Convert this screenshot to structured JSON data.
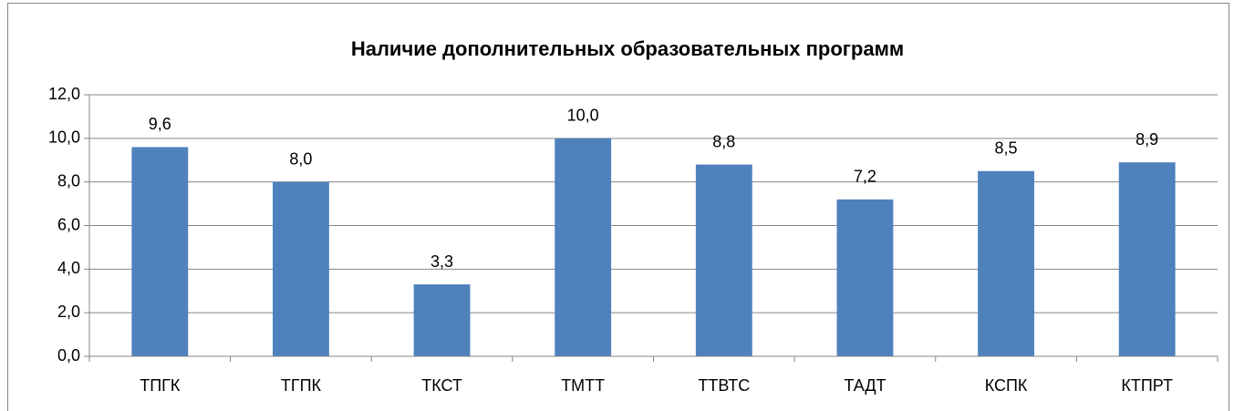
{
  "chart_data": {
    "type": "bar",
    "title": "Наличие дополнительных образовательных программ",
    "categories": [
      "ТПГК",
      "ТГПК",
      "ТКСТ",
      "ТМТТ",
      "ТТВТС",
      "ТАДТ",
      "КСПК",
      "КТПРТ"
    ],
    "values": [
      9.6,
      8.0,
      3.3,
      10.0,
      8.8,
      7.2,
      8.5,
      8.9
    ],
    "value_labels": [
      "9,6",
      "8,0",
      "3,3",
      "10,0",
      "8,8",
      "7,2",
      "8,5",
      "8,9"
    ],
    "color": "#4f81bd",
    "ylim": [
      0,
      12
    ],
    "yticks": [
      {
        "value": 0,
        "label": "0,0"
      },
      {
        "value": 2,
        "label": "2,0"
      },
      {
        "value": 4,
        "label": "4,0"
      },
      {
        "value": 6,
        "label": "6,0"
      },
      {
        "value": 8,
        "label": "8,0"
      },
      {
        "value": 10,
        "label": "10,0"
      },
      {
        "value": 12,
        "label": "12,0"
      }
    ],
    "grid": true
  }
}
